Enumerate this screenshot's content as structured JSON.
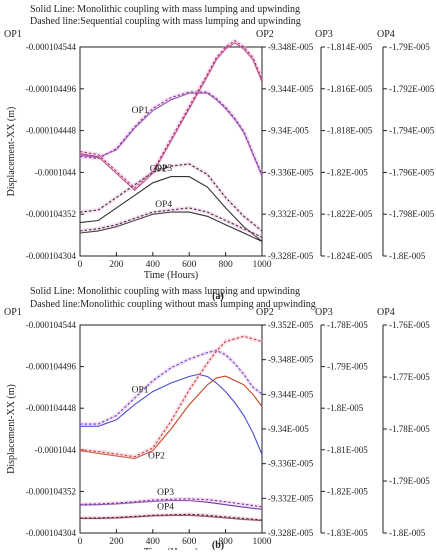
{
  "figure": {
    "panels": [
      {
        "id": "a",
        "caption": "(a)",
        "legend_lines": [
          "Solid Line: Monolithic coupling with mass lumping and upwinding",
          "Dashed line:Sequential coupling with mass lumping and upwinding"
        ]
      },
      {
        "id": "b",
        "caption": "(b)",
        "legend_lines": [
          "Solid Line: Monolithic coupling with mass lumping and upwinding",
          "Dashed line:Monolithic coupling without mass lumping and upwinding"
        ]
      }
    ]
  },
  "chart_data": [
    {
      "type": "line",
      "panel": "a",
      "xlabel": "Time (Hours)",
      "ylabel": "Displacement-XX (m)",
      "xlim": [
        0,
        1000
      ],
      "x_ticks": [
        "0",
        "200",
        "400",
        "600",
        "800",
        "1000"
      ],
      "axes": [
        {
          "name": "OP1",
          "ticks": [
            "-0.000104544",
            "-0.000104496",
            "-0.000104448",
            "-0.0001044",
            "-0.000104352",
            "-0.000104304"
          ]
        },
        {
          "name": "OP2",
          "ticks": [
            "-9.348E-005",
            "-9.344E-005",
            "-9.34E-005",
            "-9.336E-005",
            "-9.332E-005",
            "-9.328E-005"
          ]
        },
        {
          "name": "OP3",
          "ticks": [
            "-1.814E-005",
            "-1.816E-005",
            "-1.818E-005",
            "-1.82E-005",
            "-1.822E-005",
            "-1.824E-005"
          ]
        },
        {
          "name": "OP4",
          "ticks": [
            "-1.79E-005",
            "-1.792E-005",
            "-1.794E-005",
            "-1.796E-005",
            "-1.798E-005",
            "-1.8E-005"
          ]
        }
      ],
      "series_labels": [
        "OP1",
        "OP2",
        "OP3",
        "OP4"
      ],
      "colors": {
        "OP1": "#7a3fa8",
        "OP2": "#a8326e",
        "OP3": "#333333",
        "OP4": "#333333",
        "band": "#f0a6d8"
      },
      "series": [
        {
          "label": "OP1",
          "axis": "OP1",
          "style": "solid",
          "x": [
            0,
            100,
            200,
            300,
            400,
            500,
            600,
            700,
            750,
            800,
            850,
            900,
            950,
            1000
          ],
          "y": [
            -0.0001044197,
            -0.0001044172,
            -0.0001044259,
            -0.0001044509,
            -0.0001044709,
            -0.0001044834,
            -0.0001044909,
            -0.0001044909,
            -0.0001044834,
            -0.0001044734,
            -0.0001044609,
            -0.0001044459,
            -0.0001044209,
            -0.0001043959
          ]
        },
        {
          "label": "OP1",
          "axis": "OP1",
          "style": "dashed",
          "x": [
            0,
            100,
            200,
            300,
            400,
            500,
            600,
            700,
            750,
            800,
            850,
            900,
            950,
            1000
          ],
          "y": [
            -0.0001044184,
            -0.0001044159,
            -0.0001044272,
            -0.0001044522,
            -0.0001044734,
            -0.0001044859,
            -0.0001044922,
            -0.0001044922,
            -0.0001044847,
            -0.0001044747,
            -0.0001044622,
            -0.0001044472,
            -0.0001044222,
            -0.0001043972
          ]
        },
        {
          "label": "OP2",
          "axis": "OP2",
          "style": "solid",
          "x": [
            0,
            100,
            200,
            300,
            400,
            500,
            600,
            700,
            750,
            800,
            850,
            900,
            950,
            1000
          ],
          "y": [
            -9.3378e-05,
            -9.3375e-05,
            -9.3359e-05,
            -9.3343e-05,
            -9.3359e-05,
            -9.339e-05,
            -9.3421e-05,
            -9.3452e-05,
            -9.3468e-05,
            -9.3478e-05,
            -9.3484e-05,
            -9.3478e-05,
            -9.3468e-05,
            -9.3447e-05
          ]
        },
        {
          "label": "OP2",
          "axis": "OP2",
          "style": "dashed",
          "x": [
            0,
            100,
            200,
            300,
            400,
            500,
            600,
            700,
            750,
            800,
            850,
            900,
            950,
            1000
          ],
          "y": [
            -9.338e-05,
            -9.3377e-05,
            -9.3361e-05,
            -9.3345e-05,
            -9.3361e-05,
            -9.3392e-05,
            -9.3423e-05,
            -9.3454e-05,
            -9.347e-05,
            -9.348e-05,
            -9.3486e-05,
            -9.348e-05,
            -9.347e-05,
            -9.3449e-05
          ]
        },
        {
          "label": "OP3",
          "axis": "OP3",
          "style": "solid",
          "x": [
            0,
            100,
            200,
            300,
            400,
            500,
            600,
            700,
            800,
            900,
            1000
          ],
          "y": [
            -1.8224e-05,
            -1.8223e-05,
            -1.8217e-05,
            -1.8211e-05,
            -1.8205e-05,
            -1.8202e-05,
            -1.8202e-05,
            -1.8207e-05,
            -1.8217e-05,
            -1.8226e-05,
            -1.8233e-05
          ]
        },
        {
          "label": "OP3",
          "axis": "OP3",
          "style": "dashed",
          "x": [
            0,
            100,
            200,
            300,
            400,
            500,
            600,
            700,
            800,
            900,
            1000
          ],
          "y": [
            -1.8219e-05,
            -1.8218e-05,
            -1.8212e-05,
            -1.8206e-05,
            -1.82e-05,
            -1.8197e-05,
            -1.8196e-05,
            -1.8201e-05,
            -1.8212e-05,
            -1.8221e-05,
            -1.8228e-05
          ]
        },
        {
          "label": "OP4",
          "axis": "OP4",
          "style": "solid",
          "x": [
            0,
            100,
            200,
            300,
            400,
            500,
            600,
            700,
            800,
            900,
            1000
          ],
          "y": [
            -1.7989e-05,
            -1.7988e-05,
            -1.7986e-05,
            -1.7983e-05,
            -1.798e-05,
            -1.7979e-05,
            -1.7979e-05,
            -1.7981e-05,
            -1.7985e-05,
            -1.7989e-05,
            -1.7993e-05
          ]
        },
        {
          "label": "OP4",
          "axis": "OP4",
          "style": "dashed",
          "x": [
            0,
            100,
            200,
            300,
            400,
            500,
            600,
            700,
            800,
            900,
            1000
          ],
          "y": [
            -1.7988e-05,
            -1.7987e-05,
            -1.7985e-05,
            -1.7982e-05,
            -1.7979e-05,
            -1.7978e-05,
            -1.7977e-05,
            -1.7979e-05,
            -1.7983e-05,
            -1.7987e-05,
            -1.7991e-05
          ]
        }
      ]
    },
    {
      "type": "line",
      "panel": "b",
      "xlabel": "Time (Hours)",
      "ylabel": "Displacement-XX (m)",
      "xlim": [
        0,
        1000
      ],
      "x_ticks": [
        "0",
        "200",
        "400",
        "600",
        "800",
        "1000"
      ],
      "axes": [
        {
          "name": "OP1",
          "ticks": [
            "-0.000104544",
            "-0.000104496",
            "-0.000104448",
            "-0.0001044",
            "-0.000104352",
            "-0.000104304"
          ]
        },
        {
          "name": "OP2",
          "ticks": [
            "-9.352E-005",
            "-9.348E-005",
            "-9.344E-005",
            "-9.34E-005",
            "-9.336E-005",
            "-9.332E-005",
            "-9.328E-005"
          ]
        },
        {
          "name": "OP3",
          "ticks": [
            "-1.78E-005",
            "-1.79E-005",
            "-1.8E-005",
            "-1.81E-005",
            "-1.82E-005",
            "-1.83E-005"
          ]
        },
        {
          "name": "OP4",
          "ticks": [
            "-1.76E-005",
            "-1.77E-005",
            "-1.78E-005",
            "-1.79E-005",
            "-1.8E-005"
          ]
        }
      ],
      "series_labels": [
        "OP1",
        "OP2",
        "OP3",
        "OP4"
      ],
      "colors": {
        "OP1": "#4a4fd0",
        "OP2": "#c8461e",
        "OP3": "#6a3aa8",
        "OP4": "#5a2a2a",
        "band": "#f0a6d8"
      },
      "series": [
        {
          "label": "OP1",
          "axis": "OP1",
          "style": "solid",
          "x": [
            0,
            100,
            200,
            300,
            400,
            500,
            600,
            650,
            700,
            750,
            800,
            850,
            900,
            950,
            1000
          ],
          "y": [
            -0.0001044271,
            -0.0001044271,
            -0.0001044346,
            -0.0001044521,
            -0.0001044671,
            -0.0001044771,
            -0.0001044846,
            -0.0001044871,
            -0.0001044846,
            -0.0001044771,
            -0.0001044671,
            -0.0001044546,
            -0.0001044396,
            -0.0001044196,
            -0.0001043946
          ]
        },
        {
          "label": "OP1",
          "axis": "OP1",
          "style": "dashed",
          "x": [
            0,
            100,
            200,
            300,
            400,
            500,
            600,
            700,
            750,
            800,
            850,
            900,
            950,
            1000
          ],
          "y": [
            -0.0001044296,
            -0.0001044296,
            -0.0001044396,
            -0.0001044596,
            -0.0001044796,
            -0.0001044946,
            -0.0001045046,
            -0.0001045121,
            -0.0001045146,
            -0.0001045096,
            -0.0001044996,
            -0.0001044871,
            -0.0001044721,
            -0.0001044646
          ]
        },
        {
          "label": "OP2",
          "axis": "OP2",
          "style": "solid",
          "x": [
            0,
            100,
            200,
            300,
            400,
            500,
            600,
            700,
            750,
            800,
            850,
            900,
            950,
            1000
          ],
          "y": [
            -9.3375e-05,
            -9.3372e-05,
            -9.3369e-05,
            -9.3366e-05,
            -9.3375e-05,
            -9.34e-05,
            -9.3428e-05,
            -9.3451e-05,
            -9.3459e-05,
            -9.3461e-05,
            -9.3456e-05,
            -9.3451e-05,
            -9.344e-05,
            -9.3426e-05
          ]
        },
        {
          "label": "OP2",
          "axis": "OP2",
          "style": "dashed",
          "x": [
            0,
            100,
            200,
            300,
            400,
            500,
            600,
            700,
            750,
            800,
            850,
            900,
            950,
            1000
          ],
          "y": [
            -9.3376e-05,
            -9.3374e-05,
            -9.3371e-05,
            -9.3368e-05,
            -9.3378e-05,
            -9.3409e-05,
            -9.3445e-05,
            -9.3476e-05,
            -9.349e-05,
            -9.3501e-05,
            -9.3504e-05,
            -9.3507e-05,
            -9.3504e-05,
            -9.3501e-05
          ]
        },
        {
          "label": "OP3",
          "axis": "OP3",
          "style": "solid",
          "x": [
            0,
            100,
            200,
            300,
            400,
            500,
            600,
            700,
            800,
            900,
            1000
          ],
          "y": [
            -1.8233e-05,
            -1.8232e-05,
            -1.823e-05,
            -1.8227e-05,
            -1.8224e-05,
            -1.8222e-05,
            -1.8222e-05,
            -1.8226e-05,
            -1.8232e-05,
            -1.8238e-05,
            -1.8243e-05
          ]
        },
        {
          "label": "OP3",
          "axis": "OP3",
          "style": "dashed",
          "x": [
            0,
            100,
            200,
            300,
            400,
            500,
            600,
            700,
            800,
            900,
            1000
          ],
          "y": [
            -1.8231e-05,
            -1.823e-05,
            -1.8228e-05,
            -1.8225e-05,
            -1.8221e-05,
            -1.8219e-05,
            -1.8218e-05,
            -1.822e-05,
            -1.8225e-05,
            -1.8231e-05,
            -1.8237e-05
          ]
        },
        {
          "label": "OP4",
          "axis": "OP4",
          "style": "solid",
          "x": [
            0,
            100,
            200,
            300,
            400,
            500,
            600,
            700,
            800,
            900,
            1000
          ],
          "y": [
            -1.7972e-05,
            -1.7972e-05,
            -1.7971e-05,
            -1.7969e-05,
            -1.7967e-05,
            -1.7966e-05,
            -1.7966e-05,
            -1.7968e-05,
            -1.7971e-05,
            -1.7974e-05,
            -1.7976e-05
          ]
        },
        {
          "label": "OP4",
          "axis": "OP4",
          "style": "dashed",
          "x": [
            0,
            100,
            200,
            300,
            400,
            500,
            600,
            700,
            800,
            900,
            1000
          ],
          "y": [
            -1.7971e-05,
            -1.7971e-05,
            -1.797e-05,
            -1.7968e-05,
            -1.7966e-05,
            -1.7965e-05,
            -1.7964e-05,
            -1.7966e-05,
            -1.7969e-05,
            -1.7972e-05,
            -1.7975e-05
          ]
        }
      ]
    }
  ]
}
